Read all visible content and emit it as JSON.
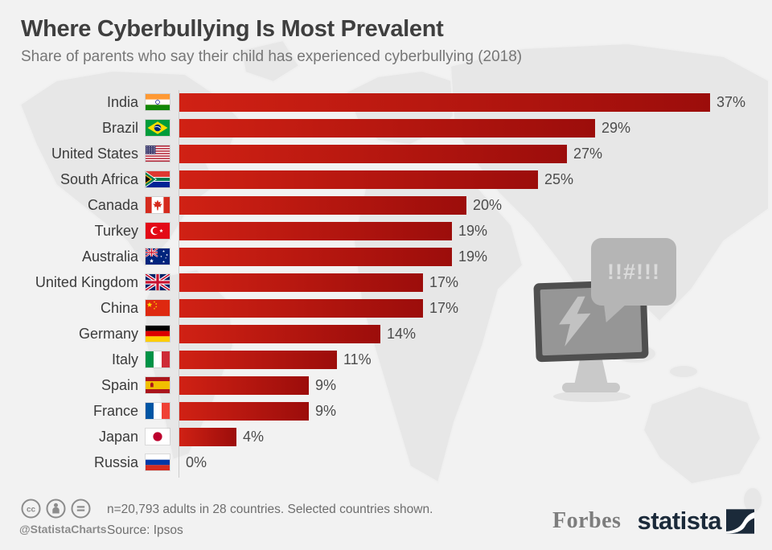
{
  "header": {
    "title": "Where Cyberbullying Is Most Prevalent",
    "subtitle": "Share of parents who say their child has experienced cyberbullying (2018)"
  },
  "chart_data": {
    "type": "bar",
    "orientation": "horizontal",
    "title": "Where Cyberbullying Is Most Prevalent",
    "subtitle": "Share of parents who say their child has experienced cyberbullying (2018)",
    "unit": "%",
    "xlim": [
      0,
      40
    ],
    "grid": false,
    "bar_color_gradient": [
      "#d02114",
      "#9c0d0b"
    ],
    "categories": [
      "India",
      "Brazil",
      "United States",
      "South Africa",
      "Canada",
      "Turkey",
      "Australia",
      "United Kingdom",
      "China",
      "Germany",
      "Italy",
      "Spain",
      "France",
      "Japan",
      "Russia"
    ],
    "values": [
      37,
      29,
      27,
      25,
      20,
      19,
      19,
      17,
      17,
      14,
      11,
      9,
      9,
      4,
      0
    ],
    "value_labels": [
      "37%",
      "29%",
      "27%",
      "25%",
      "20%",
      "19%",
      "19%",
      "17%",
      "17%",
      "14%",
      "11%",
      "9%",
      "9%",
      "4%",
      "0%"
    ],
    "flags": [
      "in",
      "br",
      "us",
      "za",
      "ca",
      "tr",
      "au",
      "gb",
      "cn",
      "de",
      "it",
      "es",
      "fr",
      "jp",
      "ru"
    ]
  },
  "illustration": {
    "bubble_text": "!!#!!!",
    "icons": [
      "monitor-icon",
      "lightning-bolt-icon",
      "speech-bubble-icon"
    ]
  },
  "footer": {
    "license_icons": [
      "cc-icon",
      "attribution-icon",
      "equals-icon"
    ],
    "credit": "@StatistaCharts",
    "note_line1": "n=20,793 adults in 28 countries. Selected countries shown.",
    "note_line2": "Source: Ipsos",
    "forbes": "Forbes",
    "statista": "statista"
  },
  "colors": {
    "background": "#f2f2f2",
    "map": "#e7e7e7",
    "bar_start": "#d02114",
    "bar_end": "#9c0d0b",
    "title": "#3f3f3f",
    "subtitle": "#767676",
    "statista_navy": "#1b2a3a"
  }
}
